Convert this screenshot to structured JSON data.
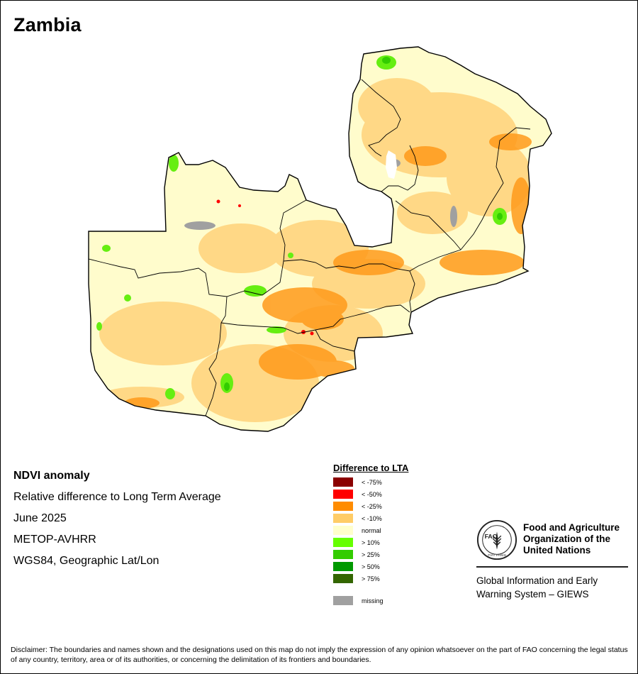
{
  "title": "Zambia",
  "map": {
    "country_fill": "#fffccc",
    "boundary_color": "#000000"
  },
  "metadata": {
    "heading": "NDVI anomaly",
    "lines": [
      "Relative difference to Long Term Average",
      "June 2025",
      "METOP-AVHRR",
      "WGS84, Geographic Lat/Lon"
    ]
  },
  "legend": {
    "title": "Difference to LTA",
    "classes": [
      {
        "label": "< -75%",
        "color": "#8b0000"
      },
      {
        "label": "< -50%",
        "color": "#ff0000"
      },
      {
        "label": "< -25%",
        "color": "#ff8c00"
      },
      {
        "label": "< -10%",
        "color": "#ffcc66"
      },
      {
        "label": "normal",
        "color": "#ffffcc"
      },
      {
        "label": "> 10%",
        "color": "#66ff00"
      },
      {
        "label": "> 25%",
        "color": "#33cc00"
      },
      {
        "label": "> 50%",
        "color": "#009900"
      },
      {
        "label": "> 75%",
        "color": "#336600"
      }
    ],
    "missing": {
      "label": "missing",
      "color": "#a0a0a0"
    }
  },
  "fao": {
    "logo_text": "FAO",
    "logo_motto": "FIAT PANIS",
    "name_lines": [
      "Food and Agriculture",
      "Organization of the",
      "United Nations"
    ],
    "giews_lines": [
      "Global Information and Early",
      "Warning System – GIEWS"
    ]
  },
  "disclaimer": "Disclaimer: The boundaries and names shown and the designations used on this map do not imply the expression of any opinion whatsoever on the part of FAO concerning the legal status of any country, territory, area or of its authorities, or concerning the delimitation of its frontiers and boundaries."
}
